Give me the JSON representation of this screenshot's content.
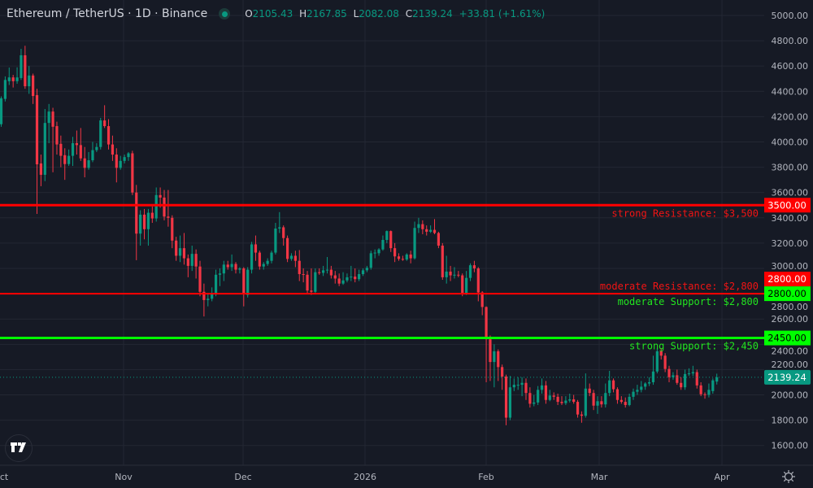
{
  "header": {
    "symbol_title": "Ethereum / TetherUS · 1D · Binance",
    "market_status_color": "#089981",
    "ohlc": {
      "o_label": "O",
      "o": "2105.43",
      "h_label": "H",
      "h": "2167.85",
      "l_label": "L",
      "l": "2082.08",
      "c_label": "C",
      "c": "2139.24",
      "change": "+33.81",
      "change_pct": "(+1.61%)"
    }
  },
  "colors": {
    "background": "#161a25",
    "up": "#089981",
    "down": "#f23645",
    "resistance": "#ff0000",
    "support": "#00ff00",
    "grid": "#232733",
    "axis_text": "#b2b5be"
  },
  "chart_data": {
    "type": "candlestick",
    "title": "Ethereum / TetherUS · 1D · Binance",
    "ylim": [
      1444,
      5122
    ],
    "grid": true,
    "y_ticks": [
      "5000.00",
      "4800.00",
      "4600.00",
      "4400.00",
      "4200.00",
      "4000.00",
      "3800.00",
      "3600.00",
      "3400.00",
      "3200.00",
      "3000.00",
      "2800.00",
      "2600.00",
      "2400.00",
      "2200.00",
      "2000.00",
      "1800.00",
      "1600.00"
    ],
    "x_ticks": [
      "ct",
      "Nov",
      "Dec",
      "2026",
      "Feb",
      "Mar",
      "Apr"
    ],
    "candles_ohlc": [
      [
        4140,
        4360,
        4120,
        4345
      ],
      [
        4340,
        4518,
        4320,
        4490
      ],
      [
        4480,
        4588,
        4450,
        4510
      ],
      [
        4510,
        4530,
        4430,
        4480
      ],
      [
        4480,
        4590,
        4460,
        4510
      ],
      [
        4505,
        4736,
        4490,
        4685
      ],
      [
        4685,
        4760,
        4420,
        4440
      ],
      [
        4440,
        4600,
        4380,
        4525
      ],
      [
        4525,
        4540,
        4300,
        4363
      ],
      [
        4370,
        4420,
        3431,
        3823
      ],
      [
        3830,
        3900,
        3650,
        3740
      ],
      [
        3740,
        4260,
        3690,
        4150
      ],
      [
        4150,
        4300,
        3990,
        4240
      ],
      [
        4240,
        4270,
        3760,
        4120
      ],
      [
        4125,
        4160,
        3900,
        3980
      ],
      [
        3985,
        4050,
        3800,
        3890
      ],
      [
        3895,
        3950,
        3700,
        3825
      ],
      [
        3825,
        3940,
        3810,
        3890
      ],
      [
        3890,
        4040,
        3810,
        3990
      ],
      [
        3990,
        4090,
        3900,
        3975
      ],
      [
        3975,
        4110,
        3850,
        3870
      ],
      [
        3870,
        3960,
        3720,
        3795
      ],
      [
        3795,
        3920,
        3780,
        3855
      ],
      [
        3855,
        4000,
        3840,
        3935
      ],
      [
        3935,
        3990,
        3920,
        3960
      ],
      [
        3960,
        4190,
        3940,
        4170
      ],
      [
        4170,
        4290,
        4110,
        4125
      ],
      [
        4125,
        4180,
        3940,
        3980
      ],
      [
        3980,
        4050,
        3850,
        3900
      ],
      [
        3900,
        3950,
        3680,
        3795
      ],
      [
        3795,
        3890,
        3780,
        3850
      ],
      [
        3850,
        3900,
        3830,
        3880
      ],
      [
        3880,
        3920,
        3850,
        3910
      ],
      [
        3910,
        3930,
        3580,
        3600
      ],
      [
        3600,
        3660,
        3065,
        3275
      ],
      [
        3275,
        3460,
        3180,
        3425
      ],
      [
        3425,
        3470,
        3230,
        3310
      ],
      [
        3310,
        3470,
        3180,
        3440
      ],
      [
        3440,
        3490,
        3360,
        3395
      ],
      [
        3395,
        3640,
        3370,
        3580
      ],
      [
        3580,
        3640,
        3480,
        3560
      ],
      [
        3560,
        3620,
        3380,
        3410
      ],
      [
        3410,
        3620,
        3330,
        3400
      ],
      [
        3400,
        3420,
        3160,
        3220
      ],
      [
        3220,
        3250,
        3060,
        3100
      ],
      [
        3100,
        3260,
        3050,
        3160
      ],
      [
        3160,
        3280,
        3030,
        3080
      ],
      [
        3080,
        3110,
        2930,
        3020
      ],
      [
        3020,
        3180,
        2980,
        3115
      ],
      [
        3115,
        3150,
        2920,
        3015
      ],
      [
        3015,
        3060,
        2780,
        2815
      ],
      [
        2815,
        2880,
        2620,
        2750
      ],
      [
        2750,
        2800,
        2700,
        2760
      ],
      [
        2760,
        2850,
        2740,
        2800
      ],
      [
        2800,
        2990,
        2780,
        2950
      ],
      [
        2950,
        3000,
        2860,
        2960
      ],
      [
        2960,
        3060,
        2900,
        3030
      ],
      [
        3030,
        3060,
        2990,
        3010
      ],
      [
        3010,
        3110,
        2980,
        3035
      ],
      [
        3035,
        3050,
        2960,
        2990
      ],
      [
        2990,
        3010,
        2960,
        3000
      ],
      [
        3000,
        3010,
        2700,
        2800
      ],
      [
        2790,
        3010,
        2770,
        2990
      ],
      [
        2990,
        3210,
        2960,
        3190
      ],
      [
        3190,
        3260,
        3060,
        3125
      ],
      [
        3125,
        3140,
        2990,
        3015
      ],
      [
        3015,
        3050,
        2990,
        3035
      ],
      [
        3035,
        3080,
        3020,
        3060
      ],
      [
        3060,
        3140,
        3040,
        3125
      ],
      [
        3125,
        3360,
        3110,
        3315
      ],
      [
        3315,
        3445,
        3280,
        3325
      ],
      [
        3325,
        3340,
        3180,
        3240
      ],
      [
        3240,
        3260,
        3050,
        3075
      ],
      [
        3075,
        3120,
        3060,
        3100
      ],
      [
        3100,
        3140,
        3010,
        3060
      ],
      [
        3060,
        3145,
        2900,
        2955
      ],
      [
        2955,
        3000,
        2890,
        2950
      ],
      [
        2950,
        2980,
        2800,
        2825
      ],
      [
        2825,
        3000,
        2790,
        2815
      ],
      [
        2815,
        3000,
        2800,
        2970
      ],
      [
        2970,
        3000,
        2950,
        2965
      ],
      [
        2965,
        3020,
        2940,
        2985
      ],
      [
        2985,
        3090,
        2960,
        2990
      ],
      [
        2990,
        3020,
        2920,
        2945
      ],
      [
        2945,
        2980,
        2880,
        2920
      ],
      [
        2920,
        2960,
        2860,
        2880
      ],
      [
        2880,
        2970,
        2870,
        2905
      ],
      [
        2905,
        2960,
        2890,
        2930
      ],
      [
        2930,
        3020,
        2900,
        2935
      ],
      [
        2935,
        3000,
        2890,
        2915
      ],
      [
        2915,
        2990,
        2900,
        2955
      ],
      [
        2955,
        3000,
        2940,
        2985
      ],
      [
        2985,
        3020,
        2970,
        3005
      ],
      [
        3005,
        3140,
        2990,
        3120
      ],
      [
        3120,
        3150,
        3080,
        3125
      ],
      [
        3120,
        3160,
        3100,
        3150
      ],
      [
        3150,
        3260,
        3140,
        3225
      ],
      [
        3225,
        3300,
        3200,
        3295
      ],
      [
        3295,
        3300,
        3130,
        3160
      ],
      [
        3160,
        3200,
        3050,
        3095
      ],
      [
        3095,
        3120,
        3060,
        3075
      ],
      [
        3075,
        3100,
        3060,
        3070
      ],
      [
        3070,
        3120,
        3060,
        3110
      ],
      [
        3110,
        3140,
        3040,
        3080
      ],
      [
        3080,
        3370,
        3070,
        3320
      ],
      [
        3320,
        3400,
        3280,
        3350
      ],
      [
        3350,
        3380,
        3270,
        3310
      ],
      [
        3310,
        3340,
        3260,
        3290
      ],
      [
        3290,
        3340,
        3280,
        3305
      ],
      [
        3305,
        3390,
        3270,
        3280
      ],
      [
        3280,
        3290,
        3160,
        3180
      ],
      [
        3180,
        3200,
        2910,
        2930
      ],
      [
        2930,
        3100,
        2880,
        2975
      ],
      [
        2975,
        3020,
        2900,
        2945
      ],
      [
        2945,
        3010,
        2920,
        2950
      ],
      [
        2950,
        2980,
        2930,
        2945
      ],
      [
        2945,
        2960,
        2780,
        2805
      ],
      [
        2805,
        2980,
        2790,
        2925
      ],
      [
        2925,
        3040,
        2900,
        3025
      ],
      [
        3025,
        3060,
        2970,
        3000
      ],
      [
        3000,
        3010,
        2740,
        2810
      ],
      [
        2810,
        2820,
        2630,
        2695
      ],
      [
        2695,
        2700,
        2100,
        2440
      ],
      [
        2440,
        2470,
        2110,
        2260
      ],
      [
        2260,
        2400,
        2060,
        2345
      ],
      [
        2345,
        2360,
        2110,
        2220
      ],
      [
        2220,
        2240,
        2040,
        2145
      ],
      [
        2145,
        2160,
        1760,
        1820
      ],
      [
        1820,
        2150,
        1800,
        2060
      ],
      [
        2060,
        2130,
        2030,
        2080
      ],
      [
        2080,
        2140,
        2040,
        2080
      ],
      [
        2080,
        2140,
        1990,
        2095
      ],
      [
        2095,
        2130,
        1960,
        2015
      ],
      [
        2015,
        2060,
        1900,
        1930
      ],
      [
        1930,
        2000,
        1910,
        1940
      ],
      [
        1940,
        2070,
        1920,
        2040
      ],
      [
        2040,
        2130,
        2010,
        2075
      ],
      [
        2075,
        2110,
        1930,
        1960
      ],
      [
        1960,
        2040,
        1950,
        1995
      ],
      [
        1995,
        2020,
        1960,
        1985
      ],
      [
        1985,
        2010,
        1920,
        1945
      ],
      [
        1945,
        1990,
        1920,
        1935
      ],
      [
        1935,
        1990,
        1920,
        1955
      ],
      [
        1955,
        2010,
        1940,
        1965
      ],
      [
        1965,
        2000,
        1930,
        1945
      ],
      [
        1945,
        1960,
        1820,
        1845
      ],
      [
        1845,
        1870,
        1780,
        1835
      ],
      [
        1835,
        2170,
        1820,
        2050
      ],
      [
        2050,
        2090,
        1990,
        2015
      ],
      [
        2015,
        2040,
        1880,
        1915
      ],
      [
        1915,
        1990,
        1850,
        1950
      ],
      [
        1950,
        1990,
        1900,
        1925
      ],
      [
        1925,
        2090,
        1900,
        2015
      ],
      [
        2015,
        2190,
        1990,
        2115
      ],
      [
        2115,
        2130,
        2020,
        2045
      ],
      [
        2045,
        2060,
        1930,
        1960
      ],
      [
        1960,
        1990,
        1930,
        1945
      ],
      [
        1945,
        1980,
        1900,
        1920
      ],
      [
        1920,
        2010,
        1910,
        1985
      ],
      [
        1985,
        2050,
        1960,
        2025
      ],
      [
        2025,
        2080,
        2000,
        2040
      ],
      [
        2040,
        2110,
        2020,
        2065
      ],
      [
        2065,
        2100,
        2040,
        2090
      ],
      [
        2090,
        2140,
        2070,
        2100
      ],
      [
        2100,
        2310,
        2080,
        2185
      ],
      [
        2185,
        2370,
        2170,
        2345
      ],
      [
        2345,
        2370,
        2280,
        2310
      ],
      [
        2310,
        2330,
        2180,
        2205
      ],
      [
        2205,
        2230,
        2100,
        2140
      ],
      [
        2140,
        2180,
        2120,
        2155
      ],
      [
        2155,
        2200,
        2080,
        2095
      ],
      [
        2095,
        2140,
        2040,
        2060
      ],
      [
        2060,
        2200,
        2040,
        2165
      ],
      [
        2165,
        2210,
        2150,
        2170
      ],
      [
        2170,
        2230,
        2150,
        2180
      ],
      [
        2180,
        2200,
        2050,
        2075
      ],
      [
        2075,
        2100,
        1990,
        2005
      ],
      [
        2005,
        2020,
        1970,
        2000
      ],
      [
        2000,
        2090,
        1980,
        2040
      ],
      [
        2030,
        2130,
        2010,
        2115
      ],
      [
        2105.43,
        2167.85,
        2082.08,
        2139.24
      ]
    ],
    "horizontal_levels": [
      {
        "price": 3500,
        "label": "strong Resistance: $3,500",
        "axis_label": "3500.00",
        "color": "#ff0000"
      },
      {
        "price": 2800,
        "label": "moderate Resistance: $2,800",
        "axis_label": "2800.00",
        "color": "#ff0000"
      },
      {
        "price": 2800,
        "label": "moderate Support: $2,800",
        "axis_label": "2800.00",
        "color": "#00ff00"
      },
      {
        "price": 2450,
        "label": "strong Support: $2,450",
        "axis_label": "2450.00",
        "color": "#00ff00"
      }
    ],
    "last_price": {
      "price": 2139.24,
      "label": "2139.24",
      "color": "#089981"
    }
  },
  "footer": {
    "logo_text": "TV",
    "settings_icon": "gear-icon"
  }
}
